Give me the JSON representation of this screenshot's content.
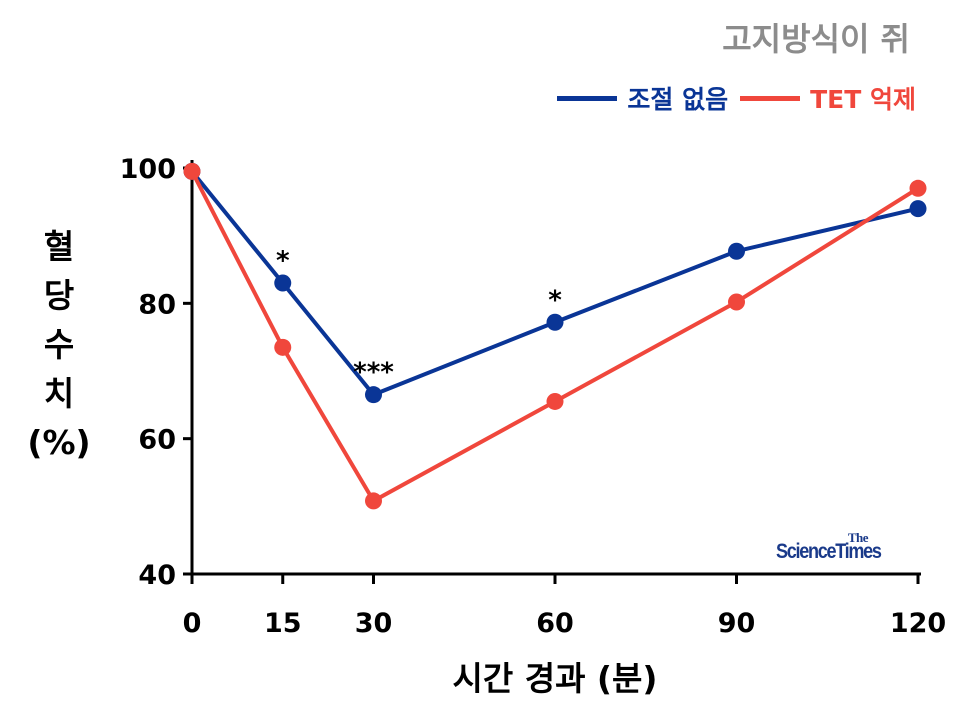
{
  "subtitle": "고지방식이 쥐",
  "ylabel_lines": [
    "혈",
    "당",
    "수",
    "치",
    "(%)"
  ],
  "xlabel": "시간 경과 (분)",
  "watermark": {
    "the": "The",
    "main": "ScienceTimes"
  },
  "chart_data": {
    "type": "line",
    "x": [
      0,
      15,
      30,
      60,
      90,
      120
    ],
    "xticks": [
      "0",
      "15",
      "30",
      "60",
      "90",
      "120"
    ],
    "yticks": [
      "40",
      "60",
      "80",
      "100"
    ],
    "ylim": [
      40,
      100
    ],
    "xlim": [
      0,
      120
    ],
    "xlabel": "시간 경과 (분)",
    "ylabel": "혈당수치 (%)",
    "grid": false,
    "legend_position": "top-right",
    "series": [
      {
        "name": "조절 없음",
        "color": "#0a3596",
        "values": [
          99.5,
          83,
          66.5,
          77.2,
          87.7,
          94
        ]
      },
      {
        "name": "TET 억제",
        "color": "#f0473c",
        "values": [
          99.5,
          73.5,
          50.8,
          65.5,
          80.2,
          97
        ]
      }
    ],
    "annotations": [
      {
        "x": 15,
        "text": "*"
      },
      {
        "x": 30,
        "text": "***"
      },
      {
        "x": 60,
        "text": "*"
      }
    ]
  }
}
